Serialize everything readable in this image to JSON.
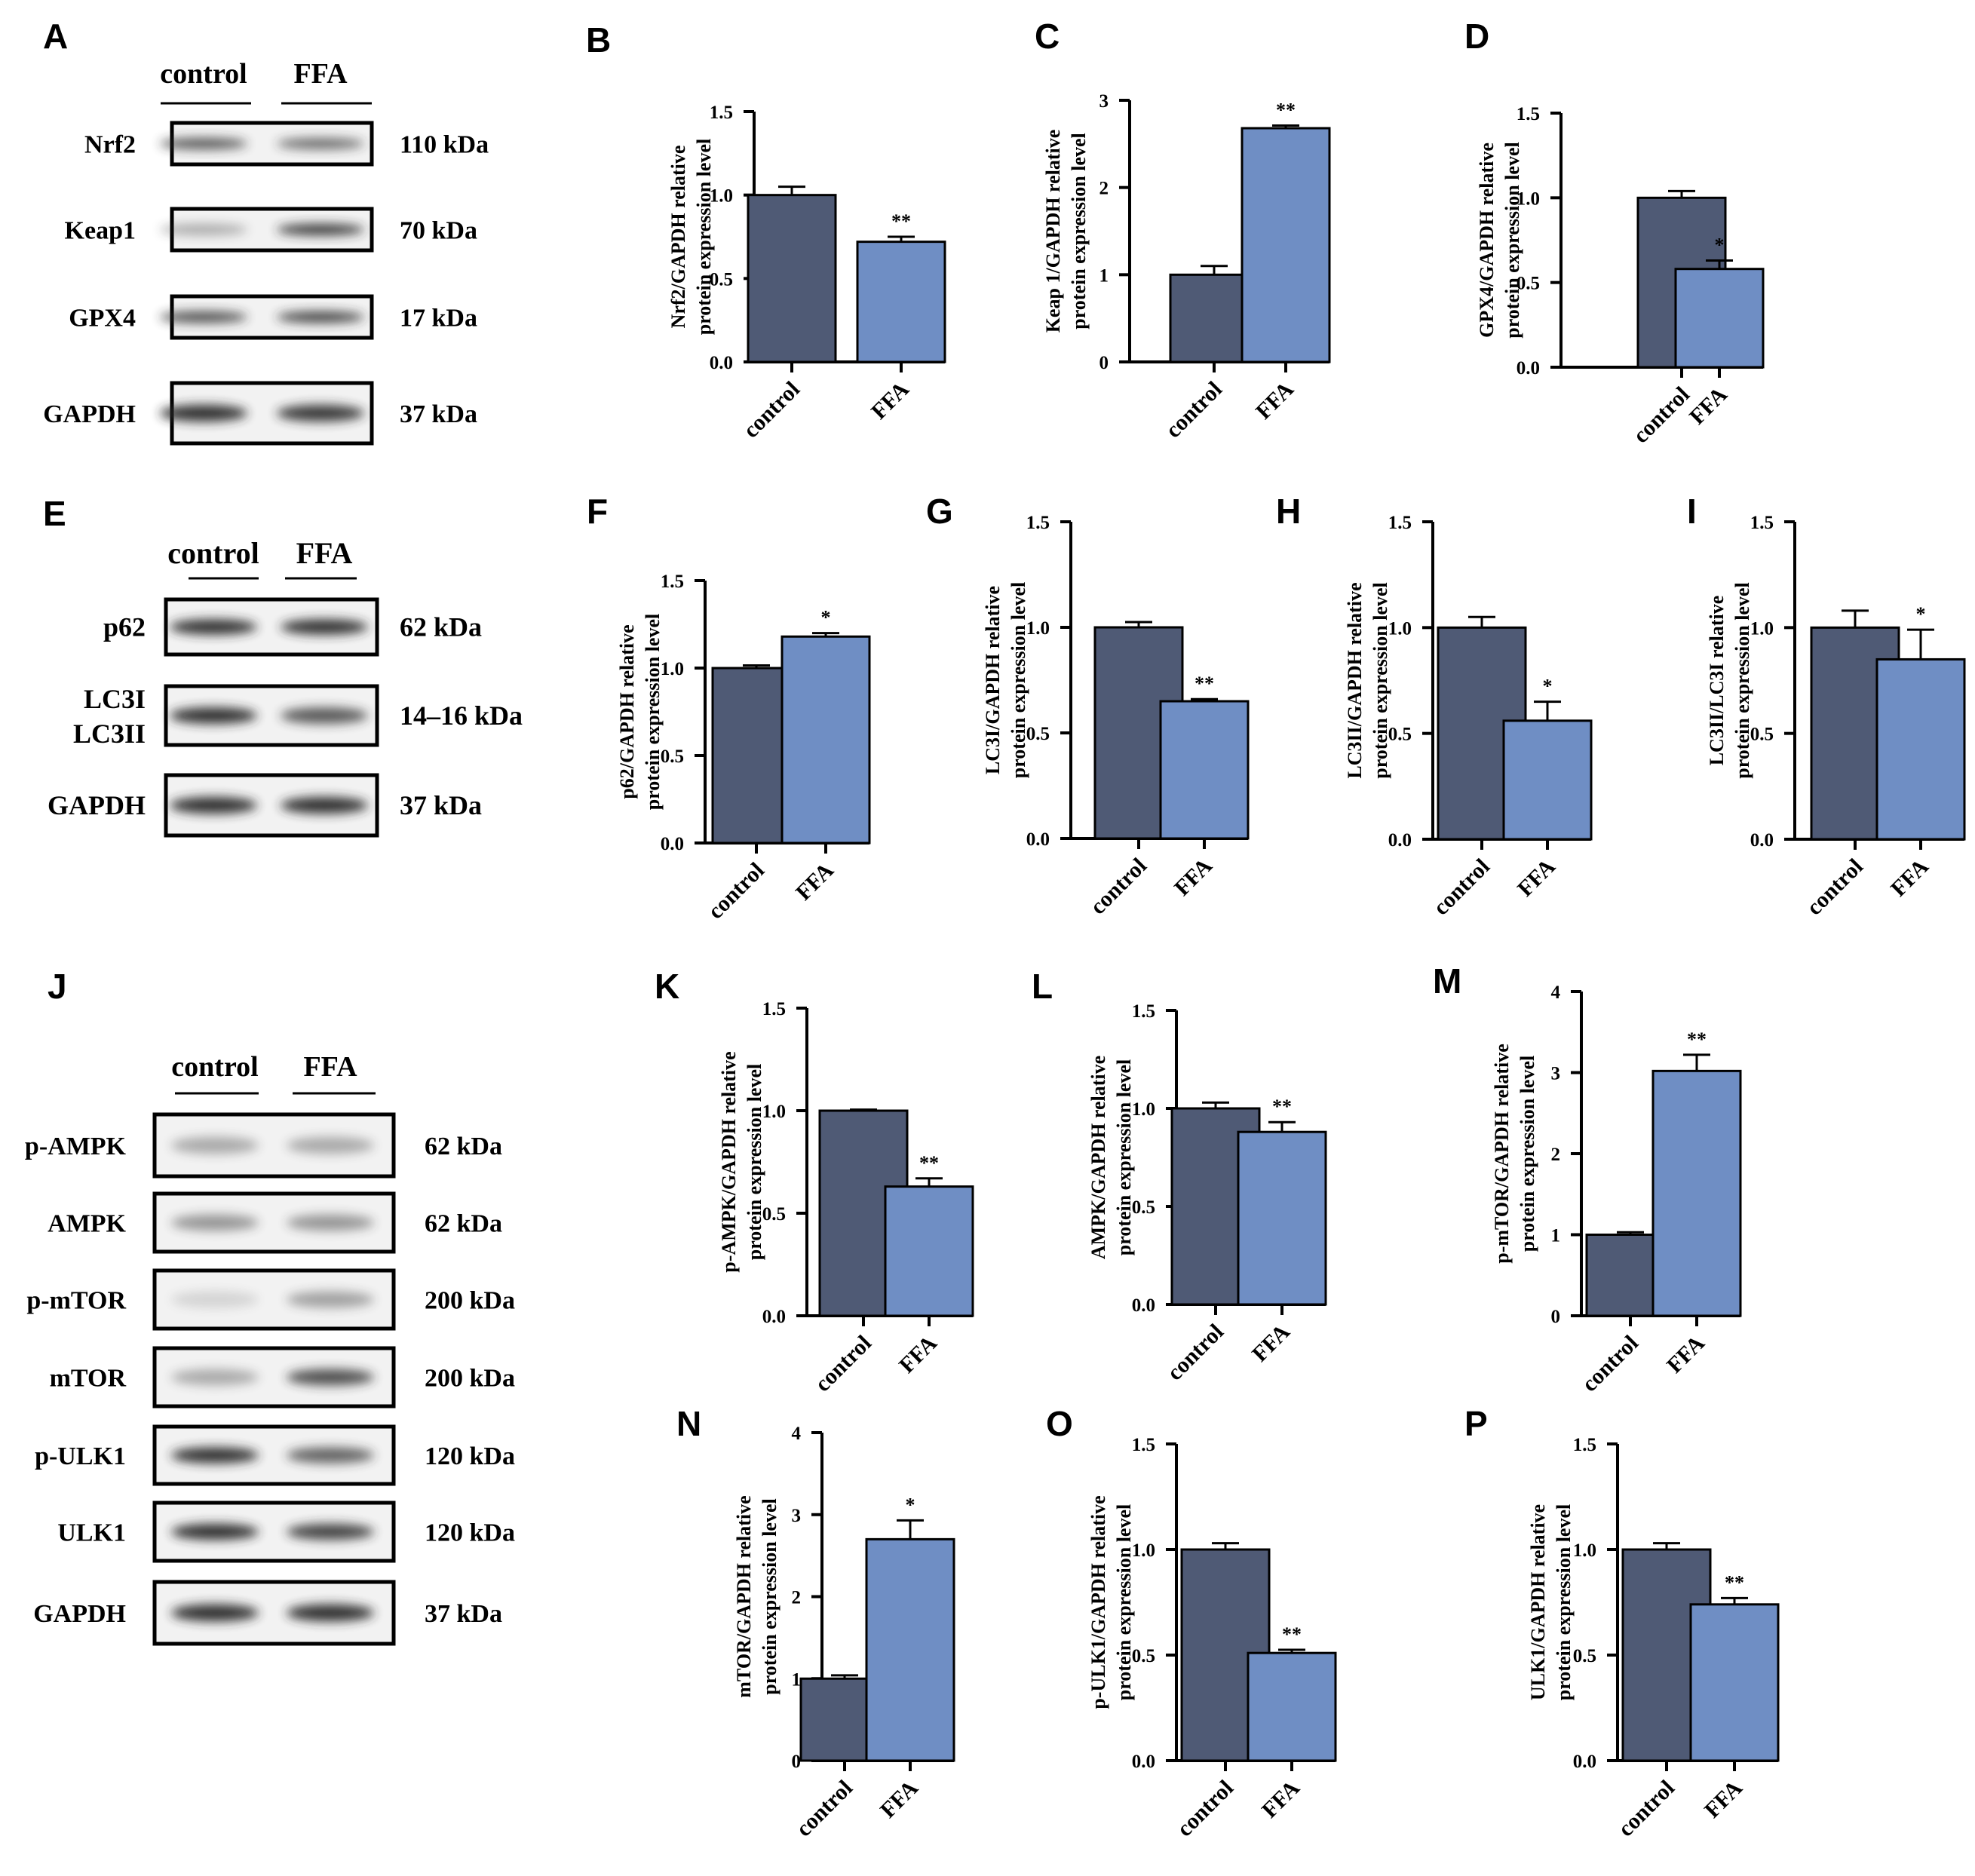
{
  "colors": {
    "control": "#4f5a75",
    "ffa": "#6f8ec4",
    "band": "#2a2a2a",
    "axis": "#000000"
  },
  "blots": [
    {
      "id": "A",
      "header": [
        "control",
        "FFA"
      ],
      "rows": [
        {
          "label": "Nrf2",
          "size": "110 kDa",
          "intensity": [
            0.75,
            0.65
          ]
        },
        {
          "label": "Keap1",
          "size": "70 kDa",
          "intensity": [
            0.35,
            0.9
          ]
        },
        {
          "label": "GPX4",
          "size": "17 kDa",
          "intensity": [
            0.8,
            0.85
          ]
        },
        {
          "label": "GAPDH",
          "size": "37 kDa",
          "intensity": [
            0.95,
            0.9
          ]
        }
      ]
    },
    {
      "id": "E",
      "header": [
        "control",
        "FFA"
      ],
      "rows": [
        {
          "label": "p62",
          "size": "62 kDa",
          "intensity": [
            0.95,
            0.95
          ]
        },
        {
          "label": "LC3I",
          "label2": "LC3II",
          "size": "14–16 kDa",
          "intensity": [
            0.95,
            0.75
          ]
        },
        {
          "label": "GAPDH",
          "size": "37 kDa",
          "intensity": [
            0.95,
            0.95
          ]
        }
      ]
    },
    {
      "id": "J",
      "header": [
        "control",
        "FFA"
      ],
      "rows": [
        {
          "label": "p-AMPK",
          "size": "62 kDa",
          "intensity": [
            0.35,
            0.35
          ]
        },
        {
          "label": "AMPK",
          "size": "62 kDa",
          "intensity": [
            0.45,
            0.45
          ]
        },
        {
          "label": "p-mTOR",
          "size": "200 kDa",
          "intensity": [
            0.15,
            0.4
          ]
        },
        {
          "label": "mTOR",
          "size": "200 kDa",
          "intensity": [
            0.35,
            0.8
          ]
        },
        {
          "label": "p-ULK1",
          "size": "120 kDa",
          "intensity": [
            0.95,
            0.7
          ]
        },
        {
          "label": "ULK1",
          "size": "120 kDa",
          "intensity": [
            0.95,
            0.85
          ]
        },
        {
          "label": "GAPDH",
          "size": "37 kDa",
          "intensity": [
            0.95,
            0.95
          ]
        }
      ]
    }
  ],
  "chart_data": [
    {
      "id": "B",
      "type": "bar",
      "categories": [
        "control",
        "FFA"
      ],
      "values": [
        1.0,
        0.72
      ],
      "errors": [
        0.05,
        0.03
      ],
      "sig": [
        "",
        "**"
      ],
      "ylabel": [
        "Nrf2/GAPDH relative",
        "protein expression level"
      ],
      "ylim": [
        0,
        1.5
      ],
      "ticks": [
        "0.0",
        "0.5",
        "1.0",
        "1.5"
      ]
    },
    {
      "id": "C",
      "type": "bar",
      "categories": [
        "control",
        "FFA"
      ],
      "values": [
        1.0,
        2.68
      ],
      "errors": [
        0.1,
        0.03
      ],
      "sig": [
        "",
        "**"
      ],
      "ylabel": [
        "Keap 1/GAPDH relative",
        "protein expression level"
      ],
      "ylim": [
        0,
        3
      ],
      "ticks": [
        "0",
        "1",
        "2",
        "3"
      ]
    },
    {
      "id": "D",
      "type": "bar",
      "categories": [
        "control",
        "FFA"
      ],
      "values": [
        1.0,
        0.58
      ],
      "errors": [
        0.04,
        0.05
      ],
      "sig": [
        "",
        "*"
      ],
      "ylabel": [
        "GPX4/GAPDH relative",
        "protein expression level"
      ],
      "ylim": [
        0,
        1.5
      ],
      "ticks": [
        "0.0",
        "0.5",
        "1.0",
        "1.5"
      ]
    },
    {
      "id": "F",
      "type": "bar",
      "categories": [
        "control",
        "FFA"
      ],
      "values": [
        1.0,
        1.18
      ],
      "errors": [
        0.015,
        0.02
      ],
      "sig": [
        "",
        "*"
      ],
      "ylabel": [
        "p62/GAPDH relative",
        "protein expression level"
      ],
      "ylim": [
        0,
        1.5
      ],
      "ticks": [
        "0.0",
        "0.5",
        "1.0",
        "1.5"
      ]
    },
    {
      "id": "G",
      "type": "bar",
      "categories": [
        "control",
        "FFA"
      ],
      "values": [
        1.0,
        0.65
      ],
      "errors": [
        0.025,
        0.01
      ],
      "sig": [
        "",
        "**"
      ],
      "ylabel": [
        "LC3I/GAPDH relative",
        "protein expression level"
      ],
      "ylim": [
        0,
        1.5
      ],
      "ticks": [
        "0.0",
        "0.5",
        "1.0",
        "1.5"
      ]
    },
    {
      "id": "H",
      "type": "bar",
      "categories": [
        "control",
        "FFA"
      ],
      "values": [
        1.0,
        0.56
      ],
      "errors": [
        0.05,
        0.09
      ],
      "sig": [
        "",
        "*"
      ],
      "ylabel": [
        "LC3II/GAPDH relative",
        "protein expression level"
      ],
      "ylim": [
        0,
        1.5
      ],
      "ticks": [
        "0.0",
        "0.5",
        "1.0",
        "1.5"
      ]
    },
    {
      "id": "I",
      "type": "bar",
      "categories": [
        "control",
        "FFA"
      ],
      "values": [
        1.0,
        0.85
      ],
      "errors": [
        0.08,
        0.14
      ],
      "sig": [
        "",
        "*"
      ],
      "ylabel": [
        "LC3II/LC3I relative",
        "protein expression level"
      ],
      "ylim": [
        0,
        1.5
      ],
      "ticks": [
        "0.0",
        "0.5",
        "1.0",
        "1.5"
      ]
    },
    {
      "id": "K",
      "type": "bar",
      "categories": [
        "control",
        "FFA"
      ],
      "values": [
        1.0,
        0.63
      ],
      "errors": [
        0.005,
        0.04
      ],
      "sig": [
        "",
        "**"
      ],
      "ylabel": [
        "p-AMPK/GAPDH relative",
        "protein expression level"
      ],
      "ylim": [
        0,
        1.5
      ],
      "ticks": [
        "0.0",
        "0.5",
        "1.0",
        "1.5"
      ]
    },
    {
      "id": "L",
      "type": "bar",
      "categories": [
        "control",
        "FFA"
      ],
      "values": [
        1.0,
        0.88
      ],
      "errors": [
        0.03,
        0.05
      ],
      "sig": [
        "",
        "**"
      ],
      "ylabel": [
        "AMPK/GAPDH relative",
        "protein expression level"
      ],
      "ylim": [
        0,
        1.5
      ],
      "ticks": [
        "0.0",
        "0.5",
        "1.0",
        "1.5"
      ]
    },
    {
      "id": "M",
      "type": "bar",
      "categories": [
        "control",
        "FFA"
      ],
      "values": [
        1.0,
        3.02
      ],
      "errors": [
        0.03,
        0.2
      ],
      "sig": [
        "",
        "**"
      ],
      "ylabel": [
        "p-mTOR/GAPDH relative",
        "protein expression level"
      ],
      "ylim": [
        0,
        4
      ],
      "ticks": [
        "0",
        "1",
        "2",
        "3",
        "4"
      ]
    },
    {
      "id": "N",
      "type": "bar",
      "categories": [
        "control",
        "FFA"
      ],
      "values": [
        1.0,
        2.7
      ],
      "errors": [
        0.04,
        0.23
      ],
      "sig": [
        "",
        "*"
      ],
      "ylabel": [
        "mTOR/GAPDH relative",
        "protein expression level"
      ],
      "ylim": [
        0,
        4
      ],
      "ticks": [
        "0",
        "1",
        "2",
        "3",
        "4"
      ]
    },
    {
      "id": "O",
      "type": "bar",
      "categories": [
        "control",
        "FFA"
      ],
      "values": [
        1.0,
        0.51
      ],
      "errors": [
        0.03,
        0.015
      ],
      "sig": [
        "",
        "**"
      ],
      "ylabel": [
        "p-ULK1/GAPDH relative",
        "protein expression level"
      ],
      "ylim": [
        0,
        1.5
      ],
      "ticks": [
        "0.0",
        "0.5",
        "1.0",
        "1.5"
      ]
    },
    {
      "id": "P",
      "type": "bar",
      "categories": [
        "control",
        "FFA"
      ],
      "values": [
        1.0,
        0.74
      ],
      "errors": [
        0.03,
        0.03
      ],
      "sig": [
        "",
        "**"
      ],
      "ylabel": [
        "ULK1/GAPDH relative",
        "protein expression level"
      ],
      "ylim": [
        0,
        1.5
      ],
      "ticks": [
        "0.0",
        "0.5",
        "1.0",
        "1.5"
      ]
    }
  ]
}
